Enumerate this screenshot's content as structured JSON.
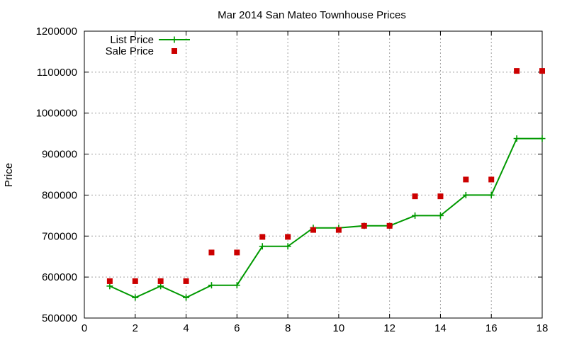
{
  "chart_data": {
    "type": "line",
    "title": "Mar 2014 San Mateo Townhouse Prices",
    "xlabel": "",
    "ylabel": "Price",
    "xlim": [
      0,
      18
    ],
    "ylim": [
      500000,
      1200000
    ],
    "x_ticks": [
      0,
      2,
      4,
      6,
      8,
      10,
      12,
      14,
      16,
      18
    ],
    "y_ticks": [
      500000,
      600000,
      700000,
      800000,
      900000,
      1000000,
      1100000,
      1200000
    ],
    "grid": true,
    "legend_position": "top-left",
    "series": [
      {
        "name": "List Price",
        "style": "lines+points",
        "marker": "plus",
        "color": "#009900",
        "x": [
          1,
          2,
          3,
          4,
          5,
          6,
          7,
          8,
          9,
          10,
          11,
          12,
          13,
          14,
          15,
          16,
          17,
          18
        ],
        "y": [
          578000,
          550000,
          578000,
          550000,
          580000,
          580000,
          675000,
          675000,
          720000,
          720000,
          725000,
          725000,
          750000,
          750000,
          800000,
          800000,
          938000,
          938000
        ]
      },
      {
        "name": "Sale Price",
        "style": "points",
        "marker": "square",
        "color": "#cc0000",
        "x": [
          1,
          2,
          3,
          4,
          5,
          6,
          7,
          8,
          9,
          10,
          11,
          12,
          13,
          14,
          15,
          16,
          17,
          18
        ],
        "y": [
          590000,
          590000,
          590000,
          590000,
          660000,
          660000,
          698000,
          698000,
          715000,
          715000,
          725000,
          725000,
          797000,
          797000,
          838000,
          838000,
          1103000,
          1103000
        ]
      }
    ]
  }
}
